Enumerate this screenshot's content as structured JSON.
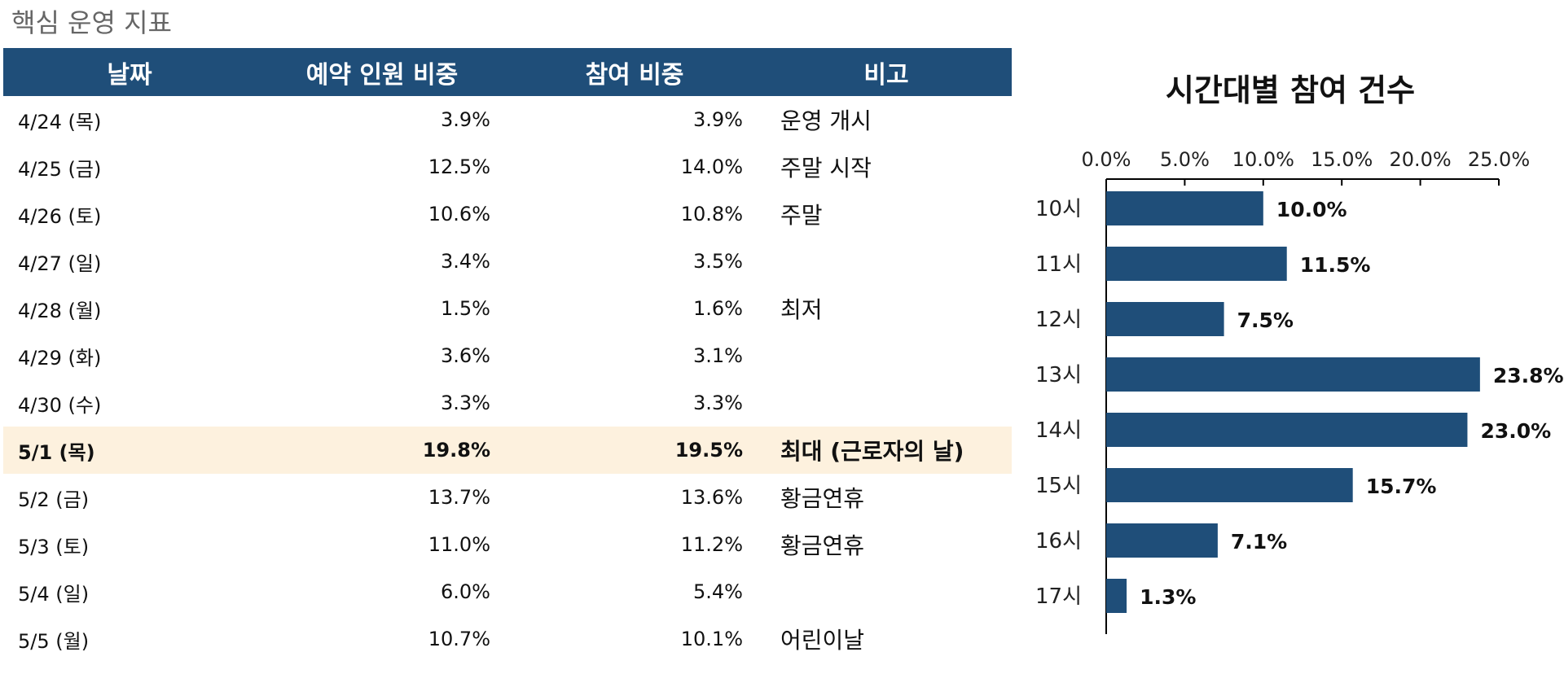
{
  "page": {
    "title": "핵심 운영 지표"
  },
  "table": {
    "headers": [
      "날짜",
      "예약 인원 비중",
      "참여 비중",
      "비고"
    ],
    "rows": [
      {
        "date": "4/24 (목)",
        "booking": "3.9%",
        "participation": "3.9%",
        "note": "운영 개시"
      },
      {
        "date": "4/25 (금)",
        "booking": "12.5%",
        "participation": "14.0%",
        "note": "주말 시작"
      },
      {
        "date": "4/26 (토)",
        "booking": "10.6%",
        "participation": "10.8%",
        "note": "주말"
      },
      {
        "date": "4/27 (일)",
        "booking": "3.4%",
        "participation": "3.5%",
        "note": ""
      },
      {
        "date": "4/28 (월)",
        "booking": "1.5%",
        "participation": "1.6%",
        "note": "최저"
      },
      {
        "date": "4/29 (화)",
        "booking": "3.6%",
        "participation": "3.1%",
        "note": ""
      },
      {
        "date": "4/30 (수)",
        "booking": "3.3%",
        "participation": "3.3%",
        "note": ""
      },
      {
        "date": "5/1 (목)",
        "booking": "19.8%",
        "participation": "19.5%",
        "note": "최대 (근로자의 날)",
        "highlight": true
      },
      {
        "date": "5/2 (금)",
        "booking": "13.7%",
        "participation": "13.6%",
        "note": "황금연휴"
      },
      {
        "date": "5/3 (토)",
        "booking": "11.0%",
        "participation": "11.2%",
        "note": "황금연휴"
      },
      {
        "date": "5/4 (일)",
        "booking": "6.0%",
        "participation": "5.4%",
        "note": ""
      },
      {
        "date": "5/5 (월)",
        "booking": "10.7%",
        "participation": "10.1%",
        "note": "어린이날"
      }
    ]
  },
  "colors": {
    "header_bg": "#1f4e79",
    "bar": "#1f4e79",
    "highlight_row": "#fdf1de",
    "title_gray": "#666666"
  },
  "chart_data": {
    "type": "bar",
    "orientation": "horizontal",
    "title": "시간대별 참여 건수",
    "categories": [
      "10시",
      "11시",
      "12시",
      "13시",
      "14시",
      "15시",
      "16시",
      "17시"
    ],
    "values": [
      10.0,
      11.5,
      7.5,
      23.8,
      23.0,
      15.7,
      7.1,
      1.3
    ],
    "value_labels": [
      "10.0%",
      "11.5%",
      "7.5%",
      "23.8%",
      "23.0%",
      "15.7%",
      "7.1%",
      "1.3%"
    ],
    "xlim": [
      0,
      25
    ],
    "xticks": [
      0,
      5,
      10,
      15,
      20,
      25
    ],
    "xtick_labels": [
      "0.0%",
      "5.0%",
      "10.0%",
      "15.0%",
      "20.0%",
      "25.0%"
    ],
    "xaxis_position": "top",
    "grid": false,
    "legend": "none",
    "xlabel": "",
    "ylabel": ""
  }
}
